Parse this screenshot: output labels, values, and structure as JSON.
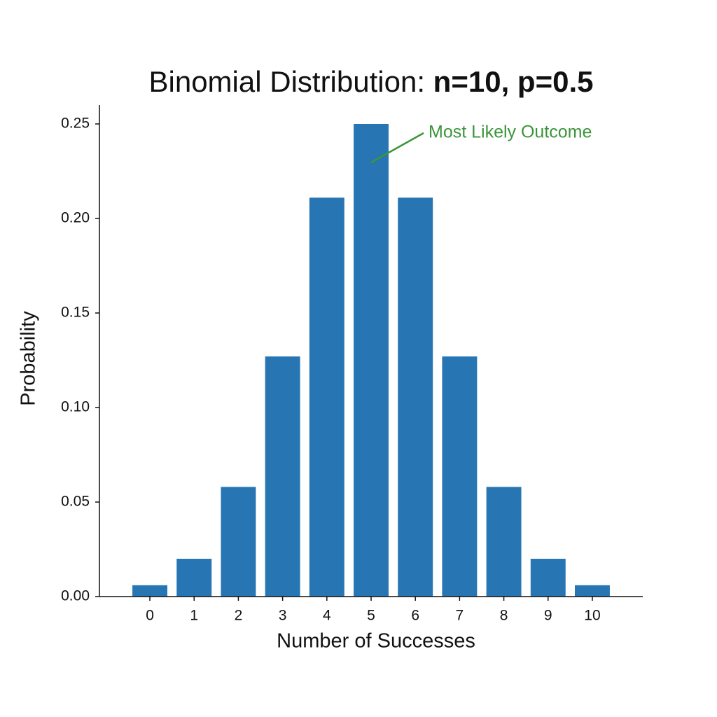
{
  "chart_data": {
    "type": "bar",
    "title": "Binomial Distribution:",
    "title_bold": "n=10, p=0.5",
    "x_label": "Number of Successes",
    "y_label": "Probability",
    "x": [
      0,
      1,
      2,
      3,
      4,
      5,
      6,
      7,
      8,
      9,
      10
    ],
    "values": [
      0.006,
      0.02,
      0.058,
      0.127,
      0.211,
      0.25,
      0.211,
      0.127,
      0.058,
      0.02,
      0.006
    ],
    "color": "#2776b3",
    "xlim": [
      -1.14,
      11.14
    ],
    "xticks": [
      0,
      1,
      2,
      3,
      4,
      5,
      6,
      7,
      8,
      9,
      10
    ],
    "ylim": [
      0,
      0.26
    ],
    "yticks": [
      {
        "value": 0,
        "label": "0.00"
      },
      {
        "value": 0.05,
        "label": "0.05"
      },
      {
        "value": 0.1,
        "label": "0.10"
      },
      {
        "value": 0.15,
        "label": "0.15"
      },
      {
        "value": 0.2,
        "label": "0.20"
      },
      {
        "value": 0.25,
        "label": "0.25"
      }
    ],
    "grid": false,
    "annotation": {
      "text": "Most Likely Outcome",
      "color": "#3a963a"
    }
  }
}
